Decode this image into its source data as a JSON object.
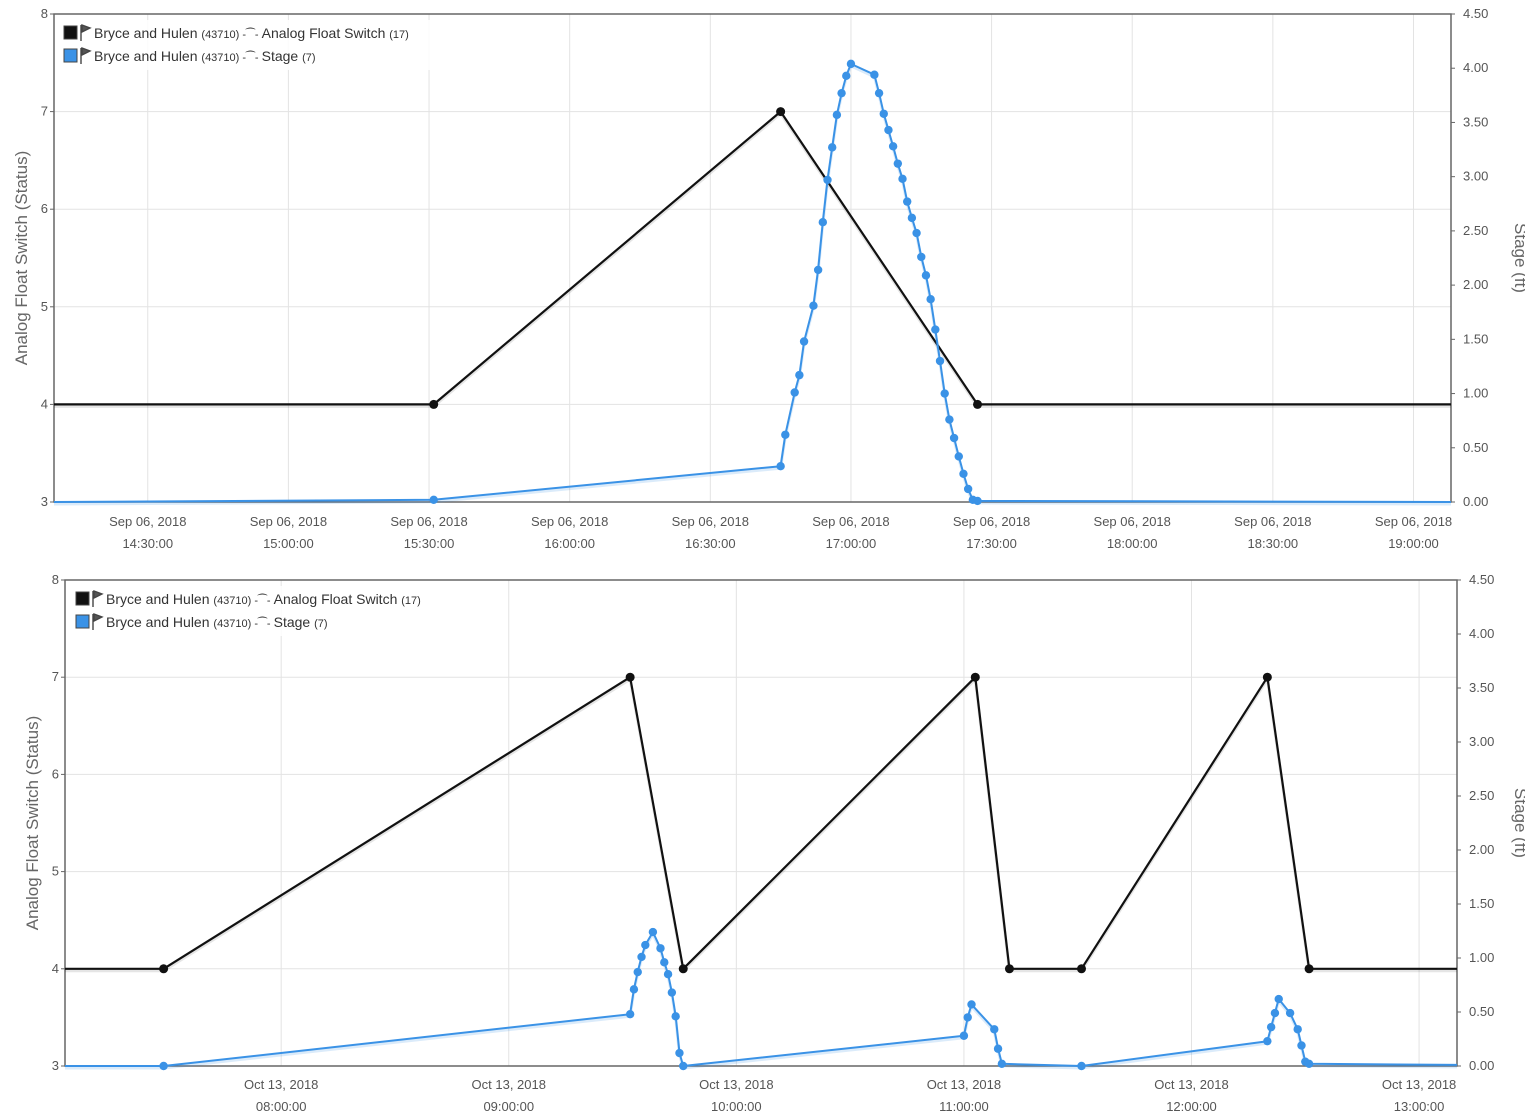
{
  "chart_data": [
    {
      "type": "line",
      "ylabel_left": "Analog Float Switch (Status)",
      "ylabel_right": "Stage (ft)",
      "ylim_left": [
        3,
        8
      ],
      "ylim_right": [
        0,
        4.5
      ],
      "y_ticks_left": [
        "3",
        "4",
        "5",
        "6",
        "7",
        "8"
      ],
      "y_ticks_right": [
        "0.00",
        "0.50",
        "1.00",
        "1.50",
        "2.00",
        "2.50",
        "3.00",
        "3.50",
        "4.00",
        "4.50"
      ],
      "xlim": [
        "2018-09-06 14:10",
        "2018-09-06 19:08"
      ],
      "x_ticks": [
        {
          "date": "Sep 06, 2018",
          "time": "14:30:00"
        },
        {
          "date": "Sep 06, 2018",
          "time": "15:00:00"
        },
        {
          "date": "Sep 06, 2018",
          "time": "15:30:00"
        },
        {
          "date": "Sep 06, 2018",
          "time": "16:00:00"
        },
        {
          "date": "Sep 06, 2018",
          "time": "16:30:00"
        },
        {
          "date": "Sep 06, 2018",
          "time": "17:00:00"
        },
        {
          "date": "Sep 06, 2018",
          "time": "17:30:00"
        },
        {
          "date": "Sep 06, 2018",
          "time": "18:00:00"
        },
        {
          "date": "Sep 06, 2018",
          "time": "18:30:00"
        },
        {
          "date": "Sep 06, 2018",
          "time": "19:00:00"
        }
      ],
      "legend": [
        {
          "site": "Bryce and Hulen",
          "site_id": "(43710)",
          "sensor": "Analog Float Switch",
          "sensor_id": "(17)",
          "color": "#111111"
        },
        {
          "site": "Bryce and Hulen",
          "site_id": "(43710)",
          "sensor": "Stage",
          "sensor_id": "(7)",
          "color": "#3a92e6"
        }
      ],
      "legend_position": "top-left",
      "grid": true,
      "series": [
        {
          "name": "Analog Float Switch",
          "axis": "left",
          "color": "#111111",
          "x": [
            "2018-09-06 14:10",
            "2018-09-06 15:31",
            "2018-09-06 16:45",
            "2018-09-06 17:27",
            "2018-09-06 19:08"
          ],
          "y": [
            4,
            4,
            7,
            4,
            4
          ],
          "markers_at": [
            1,
            2,
            3
          ]
        },
        {
          "name": "Stage",
          "axis": "right",
          "color": "#3a92e6",
          "x": [
            "2018-09-06 14:10",
            "2018-09-06 15:31",
            "2018-09-06 16:45",
            "2018-09-06 16:46",
            "2018-09-06 16:48",
            "2018-09-06 16:49",
            "2018-09-06 16:50",
            "2018-09-06 16:52",
            "2018-09-06 16:53",
            "2018-09-06 16:54",
            "2018-09-06 16:55",
            "2018-09-06 16:56",
            "2018-09-06 16:57",
            "2018-09-06 16:58",
            "2018-09-06 16:59",
            "2018-09-06 17:00",
            "2018-09-06 17:05",
            "2018-09-06 17:06",
            "2018-09-06 17:07",
            "2018-09-06 17:08",
            "2018-09-06 17:09",
            "2018-09-06 17:10",
            "2018-09-06 17:11",
            "2018-09-06 17:12",
            "2018-09-06 17:13",
            "2018-09-06 17:14",
            "2018-09-06 17:15",
            "2018-09-06 17:16",
            "2018-09-06 17:17",
            "2018-09-06 17:18",
            "2018-09-06 17:19",
            "2018-09-06 17:20",
            "2018-09-06 17:21",
            "2018-09-06 17:22",
            "2018-09-06 17:23",
            "2018-09-06 17:24",
            "2018-09-06 17:25",
            "2018-09-06 17:26",
            "2018-09-06 17:27",
            "2018-09-06 19:08"
          ],
          "y": [
            0.0,
            0.02,
            0.33,
            0.62,
            1.01,
            1.17,
            1.48,
            1.81,
            2.14,
            2.58,
            2.97,
            3.27,
            3.57,
            3.77,
            3.93,
            4.04,
            3.94,
            3.77,
            3.58,
            3.43,
            3.28,
            3.12,
            2.98,
            2.77,
            2.62,
            2.48,
            2.26,
            2.09,
            1.87,
            1.59,
            1.3,
            1.0,
            0.76,
            0.59,
            0.42,
            0.26,
            0.12,
            0.02,
            0.01,
            0.0
          ]
        }
      ]
    },
    {
      "type": "line",
      "ylabel_left": "Analog Float Switch (Status)",
      "ylabel_right": "Stage (ft)",
      "ylim_left": [
        3,
        8
      ],
      "ylim_right": [
        0,
        4.5
      ],
      "y_ticks_left": [
        "3",
        "4",
        "5",
        "6",
        "7",
        "8"
      ],
      "y_ticks_right": [
        "0.00",
        "0.50",
        "1.00",
        "1.50",
        "2.00",
        "2.50",
        "3.00",
        "3.50",
        "4.00",
        "4.50"
      ],
      "xlim": [
        "2018-10-13 07:03",
        "2018-10-13 13:10"
      ],
      "x_ticks": [
        {
          "date": "Oct 13, 2018",
          "time": "08:00:00"
        },
        {
          "date": "Oct 13, 2018",
          "time": "09:00:00"
        },
        {
          "date": "Oct 13, 2018",
          "time": "10:00:00"
        },
        {
          "date": "Oct 13, 2018",
          "time": "11:00:00"
        },
        {
          "date": "Oct 13, 2018",
          "time": "12:00:00"
        },
        {
          "date": "Oct 13, 2018",
          "time": "13:00:00"
        }
      ],
      "legend": [
        {
          "site": "Bryce and Hulen",
          "site_id": "(43710)",
          "sensor": "Analog Float Switch",
          "sensor_id": "(17)",
          "color": "#111111"
        },
        {
          "site": "Bryce and Hulen",
          "site_id": "(43710)",
          "sensor": "Stage",
          "sensor_id": "(7)",
          "color": "#3a92e6"
        }
      ],
      "legend_position": "top-left",
      "grid": true,
      "series": [
        {
          "name": "Analog Float Switch",
          "axis": "left",
          "color": "#111111",
          "x": [
            "2018-10-13 07:03",
            "2018-10-13 07:29",
            "2018-10-13 09:32",
            "2018-10-13 09:46",
            "2018-10-13 11:03",
            "2018-10-13 11:12",
            "2018-10-13 11:31",
            "2018-10-13 12:20",
            "2018-10-13 12:31",
            "2018-10-13 13:10"
          ],
          "y": [
            4,
            4,
            7,
            4,
            7,
            4,
            4,
            7,
            4,
            4
          ],
          "markers_at": [
            1,
            2,
            3,
            4,
            5,
            6,
            7,
            8
          ]
        },
        {
          "name": "Stage",
          "axis": "right",
          "color": "#3a92e6",
          "x": [
            "2018-10-13 07:03",
            "2018-10-13 07:29",
            "2018-10-13 09:32",
            "2018-10-13 09:33",
            "2018-10-13 09:34",
            "2018-10-13 09:35",
            "2018-10-13 09:36",
            "2018-10-13 09:38",
            "2018-10-13 09:40",
            "2018-10-13 09:41",
            "2018-10-13 09:42",
            "2018-10-13 09:43",
            "2018-10-13 09:44",
            "2018-10-13 09:45",
            "2018-10-13 09:46",
            "2018-10-13 11:00",
            "2018-10-13 11:01",
            "2018-10-13 11:02",
            "2018-10-13 11:08",
            "2018-10-13 11:09",
            "2018-10-13 11:10",
            "2018-10-13 11:31",
            "2018-10-13 12:20",
            "2018-10-13 12:21",
            "2018-10-13 12:22",
            "2018-10-13 12:23",
            "2018-10-13 12:26",
            "2018-10-13 12:28",
            "2018-10-13 12:29",
            "2018-10-13 12:30",
            "2018-10-13 12:31",
            "2018-10-13 13:10"
          ],
          "y": [
            0.0,
            0.0,
            0.48,
            0.71,
            0.87,
            1.01,
            1.12,
            1.24,
            1.09,
            0.96,
            0.85,
            0.68,
            0.46,
            0.12,
            0.0,
            0.28,
            0.45,
            0.57,
            0.34,
            0.16,
            0.02,
            0.0,
            0.23,
            0.36,
            0.49,
            0.62,
            0.49,
            0.34,
            0.19,
            0.04,
            0.02,
            0.01
          ]
        }
      ]
    }
  ]
}
